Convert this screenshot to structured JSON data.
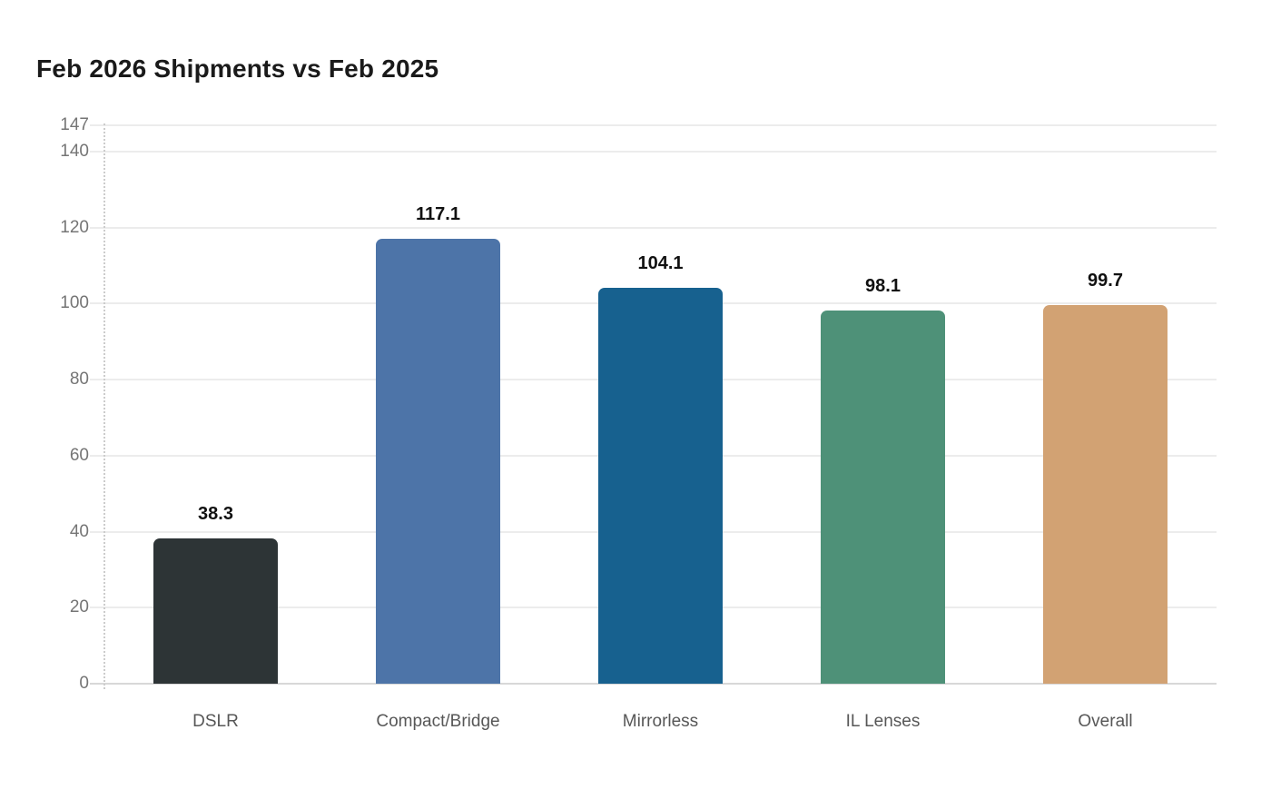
{
  "page": {
    "background_color": "#ffffff"
  },
  "chart_data": {
    "type": "bar",
    "title": "Feb 2026 Shipments vs Feb 2025",
    "categories": [
      "DSLR",
      "Compact/Bridge",
      "Mirrorless",
      "IL Lenses",
      "Overall"
    ],
    "values": [
      38.3,
      117.1,
      104.1,
      98.1,
      99.7
    ],
    "value_labels": [
      "38.3",
      "117.1",
      "104.1",
      "98.1",
      "99.7"
    ],
    "bar_colors": [
      "#2d3436",
      "#4d74a8",
      "#17618f",
      "#4e9178",
      "#d2a273"
    ],
    "xlabel": "",
    "ylabel": "",
    "ylim": [
      0,
      147
    ],
    "yticks": [
      0,
      20,
      40,
      60,
      80,
      100,
      120,
      140,
      147
    ],
    "grid": "horizontal-only",
    "legend": "none",
    "colors": {
      "title_text": "#1a1a1a",
      "y_tick_text": "#757575",
      "x_tick_text": "#575757",
      "value_label_text": "#111111",
      "gridline": "#ececec",
      "baseline": "#d8d8d8",
      "y_axis_dotted_line": "#cccccc"
    }
  }
}
